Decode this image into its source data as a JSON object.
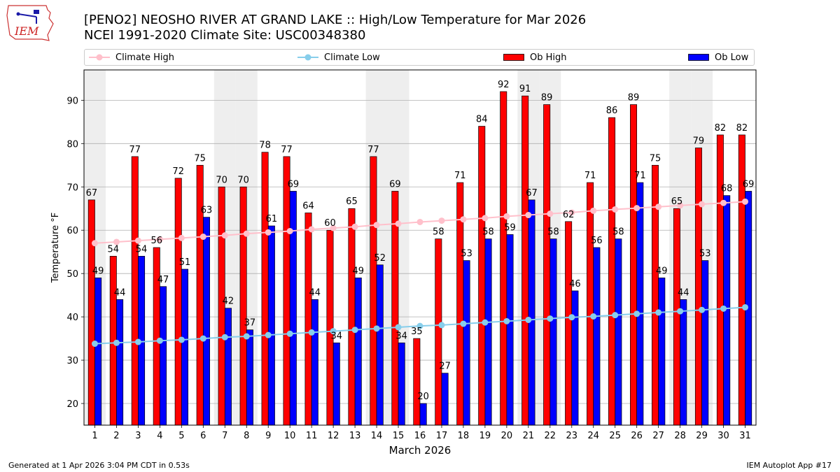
{
  "header": {
    "title_line1": "[PENO2] NEOSHO RIVER  AT GRAND LAKE :: High/Low Temperature for Mar 2026",
    "title_line2": "NCEI 1991-2020 Climate Site: USC00348380",
    "logo_text": "IEM"
  },
  "legend": {
    "climate_high": "Climate High",
    "climate_low": "Climate Low",
    "ob_high": "Ob High",
    "ob_low": "Ob Low"
  },
  "colors": {
    "ob_high": "#ff0000",
    "ob_low": "#0000ff",
    "climate_high": "#ffc0cb",
    "climate_low": "#87ceeb",
    "weekend_band": "#eeeeee"
  },
  "chart_data": {
    "type": "bar",
    "title": "[PENO2] NEOSHO RIVER  AT GRAND LAKE :: High/Low Temperature for Mar 2026",
    "xlabel": "March 2026",
    "ylabel": "Temperature °F",
    "ylim": [
      15,
      97
    ],
    "yticks": [
      20,
      30,
      40,
      50,
      60,
      70,
      80,
      90
    ],
    "grid": true,
    "legend_position": "top",
    "categories": [
      1,
      2,
      3,
      4,
      5,
      6,
      7,
      8,
      9,
      10,
      11,
      12,
      13,
      14,
      15,
      16,
      17,
      18,
      19,
      20,
      21,
      22,
      23,
      24,
      25,
      26,
      27,
      28,
      29,
      30,
      31
    ],
    "weekend_days": [
      1,
      7,
      8,
      14,
      15,
      21,
      22,
      28,
      29
    ],
    "series": [
      {
        "name": "Ob High",
        "type": "bar",
        "values": [
          67,
          54,
          77,
          56,
          72,
          75,
          70,
          70,
          78,
          77,
          64,
          60,
          65,
          77,
          69,
          35,
          58,
          71,
          84,
          92,
          91,
          89,
          62,
          71,
          86,
          89,
          75,
          65,
          79,
          82,
          82
        ]
      },
      {
        "name": "Ob Low",
        "type": "bar",
        "values": [
          49,
          44,
          54,
          47,
          51,
          63,
          42,
          37,
          61,
          69,
          44,
          34,
          49,
          52,
          34,
          20,
          27,
          53,
          58,
          59,
          67,
          58,
          46,
          56,
          58,
          71,
          49,
          44,
          53,
          68,
          69
        ]
      },
      {
        "name": "Climate High",
        "type": "line",
        "values": [
          57.0,
          57.3,
          57.6,
          57.9,
          58.2,
          58.5,
          58.8,
          59.2,
          59.5,
          59.8,
          60.2,
          60.5,
          60.8,
          61.2,
          61.5,
          61.9,
          62.2,
          62.5,
          62.8,
          63.2,
          63.5,
          63.8,
          64.1,
          64.5,
          64.8,
          65.1,
          65.4,
          65.7,
          66.0,
          66.3,
          66.6
        ]
      },
      {
        "name": "Climate Low",
        "type": "line",
        "values": [
          33.8,
          34.0,
          34.2,
          34.5,
          34.7,
          35.0,
          35.3,
          35.5,
          35.8,
          36.1,
          36.4,
          36.7,
          37.0,
          37.3,
          37.6,
          37.9,
          38.1,
          38.4,
          38.7,
          39.0,
          39.3,
          39.6,
          39.9,
          40.1,
          40.4,
          40.7,
          41.0,
          41.3,
          41.6,
          41.9,
          42.2
        ]
      }
    ]
  },
  "footer": {
    "generated": "Generated at 1 Apr 2026 3:04 PM CDT in 0.53s",
    "app": "IEM Autoplot App #17"
  }
}
